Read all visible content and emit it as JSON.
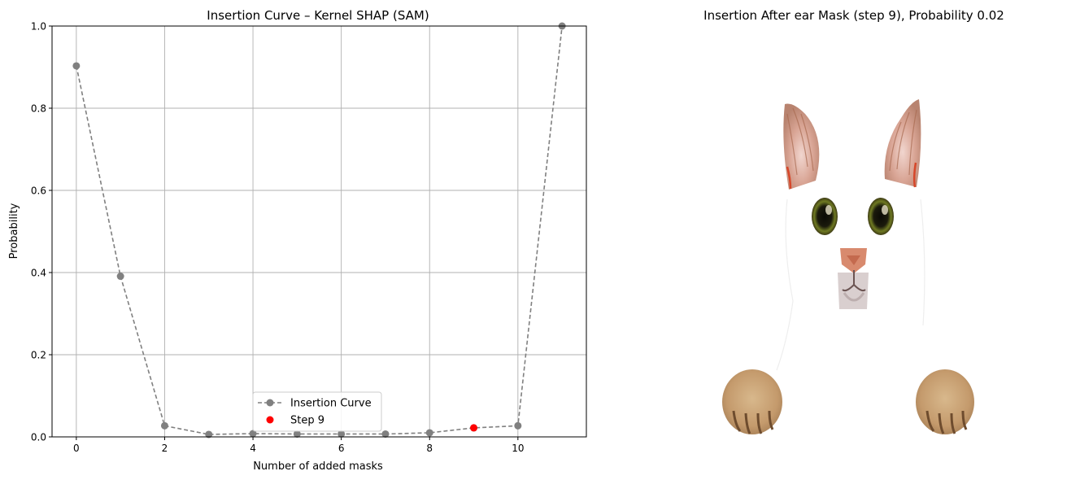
{
  "chart_data": [
    {
      "type": "line",
      "title": "Insertion Curve – Kernel SHAP (SAM)",
      "xlabel": "Number of added masks",
      "ylabel": "Probability",
      "xlim": [
        -0.55,
        11.55
      ],
      "ylim": [
        0,
        1.0
      ],
      "xticks": [
        0,
        2,
        4,
        6,
        8,
        10
      ],
      "yticks": [
        0.0,
        0.2,
        0.4,
        0.6,
        0.8,
        1.0
      ],
      "xtick_labels": [
        "0",
        "2",
        "4",
        "6",
        "8",
        "10"
      ],
      "ytick_labels": [
        "0.0",
        "0.2",
        "0.4",
        "0.6",
        "0.8",
        "1.0"
      ],
      "grid": true,
      "legend_position": "bottom-center",
      "series": [
        {
          "name": "Insertion Curve",
          "style": "dashed line with circle markers",
          "color": "#808080",
          "x": [
            0,
            1,
            2,
            3,
            4,
            5,
            6,
            7,
            8,
            9,
            10,
            11
          ],
          "y": [
            0.903,
            0.391,
            0.027,
            0.006,
            0.008,
            0.007,
            0.007,
            0.007,
            0.01,
            0.022,
            0.027,
            1.0
          ]
        },
        {
          "name": "Step 9",
          "style": "scatter",
          "color": "#ff0000",
          "x": [
            9
          ],
          "y": [
            0.022
          ]
        }
      ]
    }
  ],
  "image_panel": {
    "title": "Insertion After ear Mask (step 9), Probability 0.02",
    "content": "masked cat image showing ears, eyes, nose and paws on white background"
  }
}
